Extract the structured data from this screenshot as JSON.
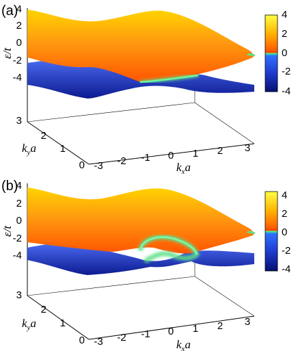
{
  "panels": [
    {
      "label": "(a)",
      "z_axis_label": "ε/t",
      "z_ticks": [
        "4",
        "2",
        "0",
        "-2",
        "-4"
      ],
      "ky_label_main": "k",
      "ky_label_sub": "y",
      "ky_label_tail": "a",
      "ky_ticks": [
        "3",
        "2",
        "1",
        "0"
      ],
      "kx_label_main": "k",
      "kx_label_sub": "x",
      "kx_label_tail": "a",
      "kx_ticks": [
        "-3",
        "-2",
        "-1",
        "0",
        "1",
        "2",
        "3"
      ],
      "colorbar_ticks": [
        "4",
        "2",
        "0",
        "-2",
        "-4"
      ]
    },
    {
      "label": "(b)",
      "z_axis_label": "ε/t",
      "z_ticks": [
        "4",
        "2",
        "0",
        "-2",
        "-4"
      ],
      "ky_label_main": "k",
      "ky_label_sub": "y",
      "ky_label_tail": "a",
      "ky_ticks": [
        "3",
        "2",
        "1",
        "0"
      ],
      "kx_label_main": "k",
      "kx_label_sub": "x",
      "kx_label_tail": "a",
      "kx_ticks": [
        "-3",
        "-2",
        "-1",
        "0",
        "1",
        "2",
        "3"
      ],
      "colorbar_ticks": [
        "4",
        "2",
        "0",
        "-2",
        "-4"
      ]
    }
  ],
  "colors": {
    "upper_band_top": "#ffd400",
    "upper_band_mid": "#ff9a10",
    "upper_band_low": "#ff5a00",
    "lower_band_top": "#3a5ae0",
    "lower_band_bottom": "#0a1a8c",
    "fermi_ring": "#5ee089"
  }
}
